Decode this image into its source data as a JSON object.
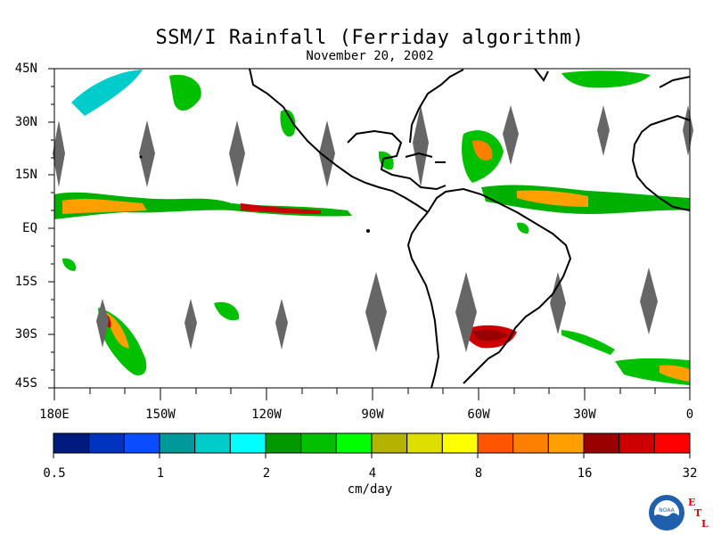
{
  "header": {
    "title": "SSM/I Rainfall (Ferriday algorithm)",
    "subtitle": "November 20, 2002"
  },
  "axes": {
    "lat_labels": [
      "45N",
      "30N",
      "15N",
      "EQ",
      "15S",
      "30S",
      "45S"
    ],
    "lon_labels": [
      "180E",
      "150W",
      "120W",
      "90W",
      "60W",
      "30W",
      "0"
    ]
  },
  "colorbar": {
    "tick_labels": [
      "0.5",
      "1",
      "2",
      "4",
      "8",
      "16",
      "32"
    ],
    "units": "cm/day",
    "colors": [
      "#001a80",
      "#0033c0",
      "#0a4dff",
      "#009999",
      "#00cccc",
      "#00ffff",
      "#009900",
      "#00c000",
      "#00ff00",
      "#b3b300",
      "#dede00",
      "#ffff00",
      "#ff5500",
      "#ff7f00",
      "#ffa000",
      "#990000",
      "#cc0000",
      "#ff0000"
    ]
  },
  "logo": {
    "agency": "NOAA",
    "lab_letters": [
      "E",
      "T",
      "L"
    ]
  },
  "colors": {
    "land_outline": "#000000",
    "missing_data": "#666666"
  }
}
